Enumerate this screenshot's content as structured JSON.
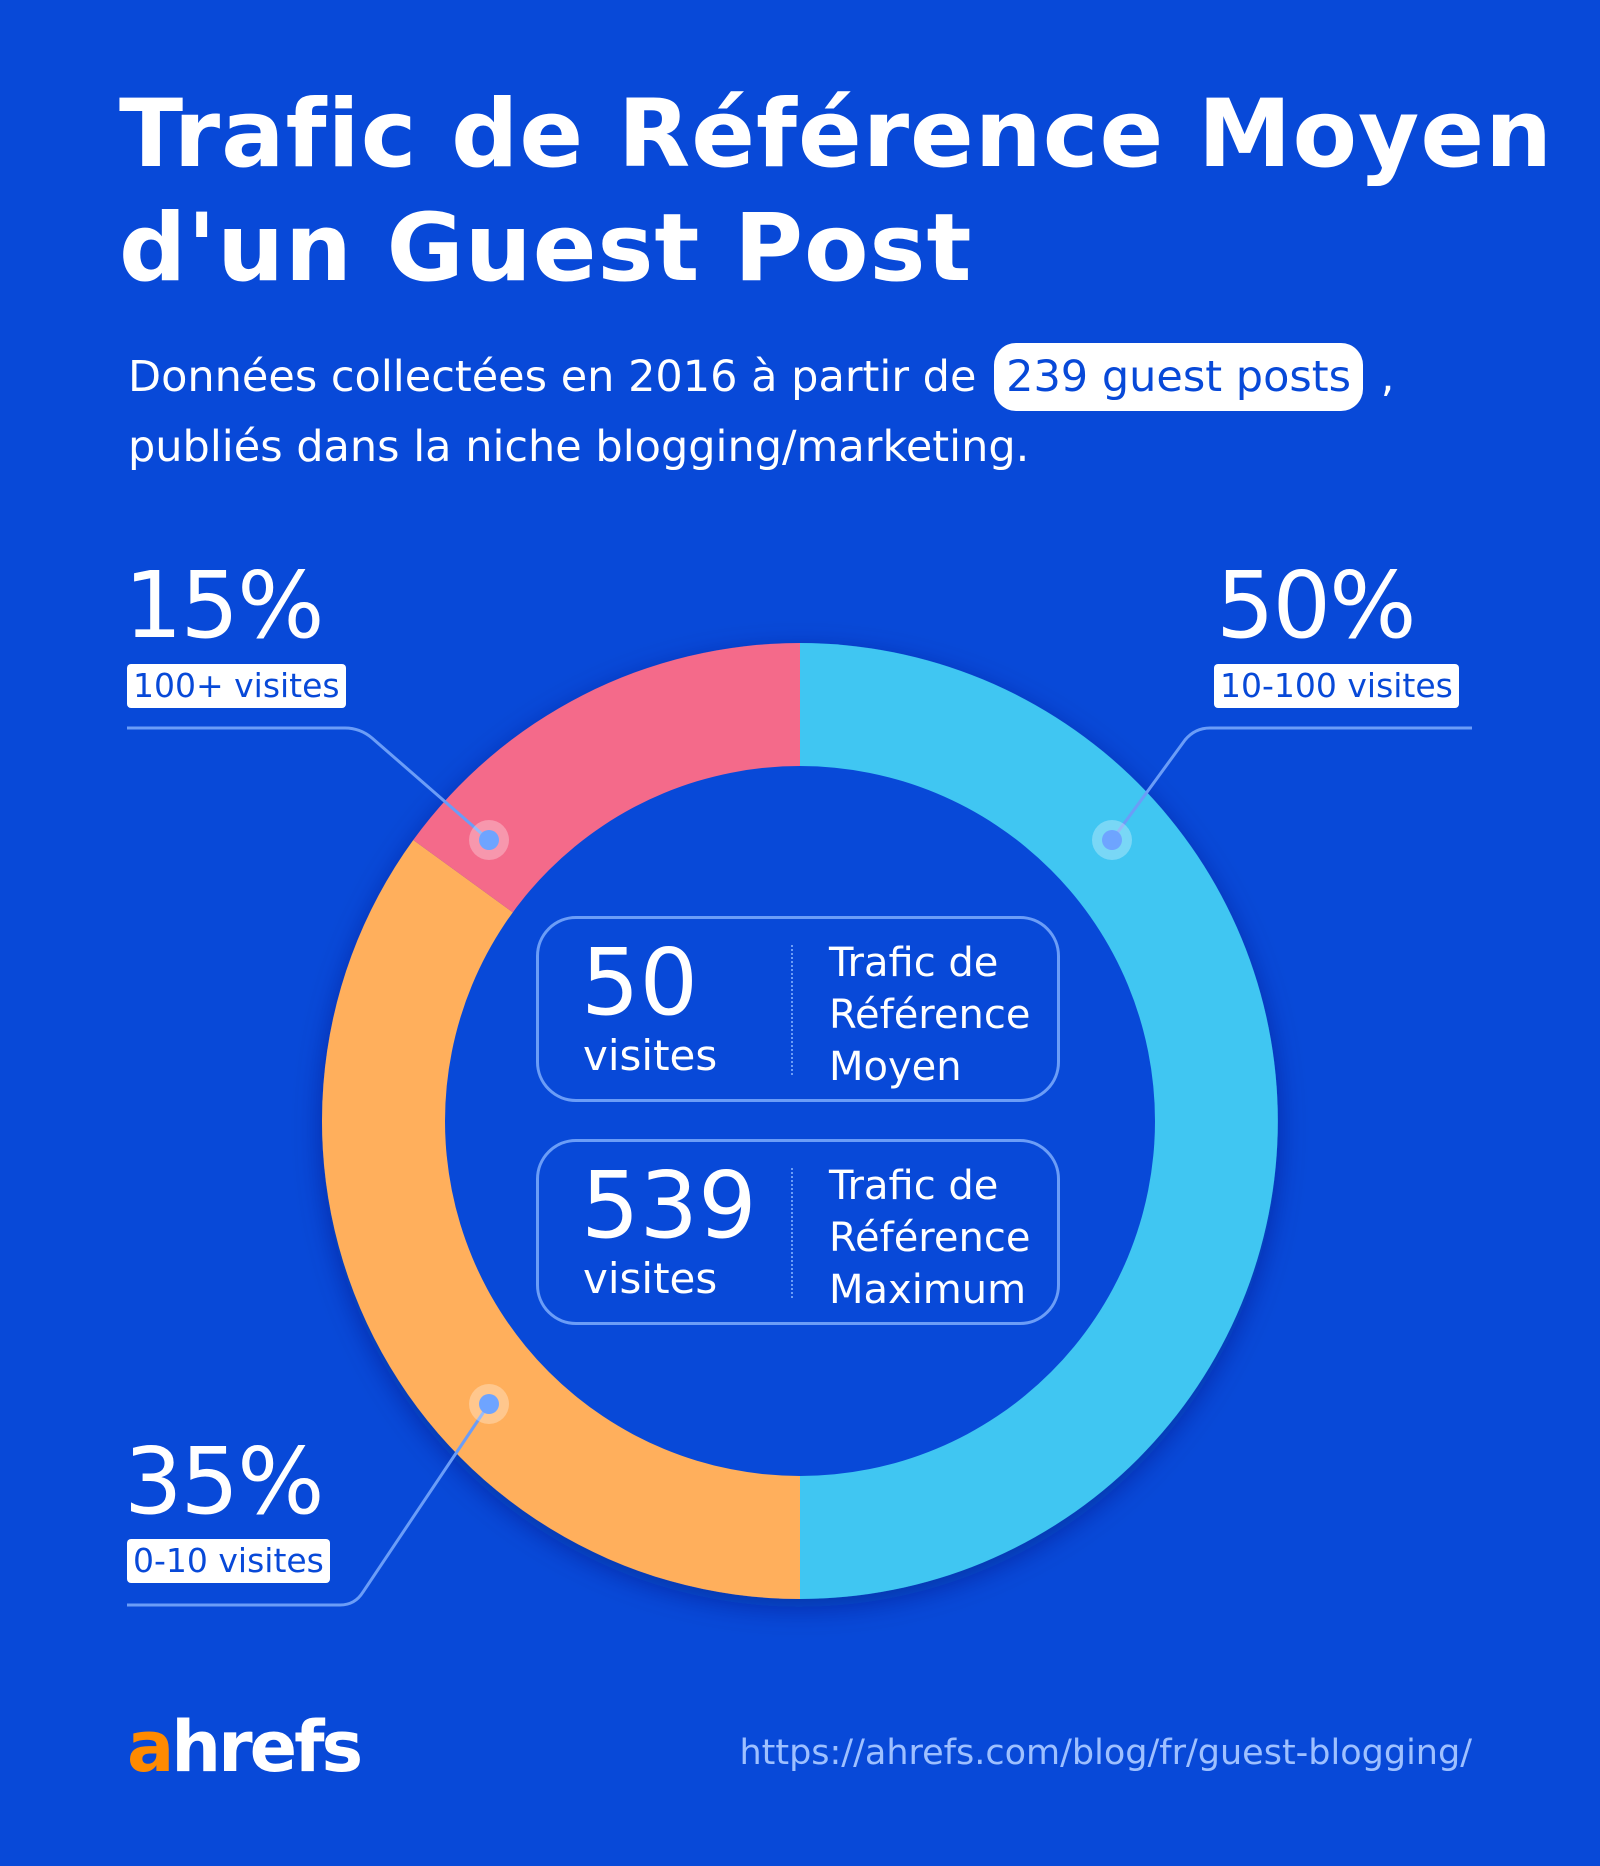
{
  "title": {
    "line1": "Trafic de Référence Moyen",
    "line2": "d'un Guest Post"
  },
  "subtitle": {
    "before": "Données collectées en 2016 à partir de",
    "highlight": "239 guest posts",
    "after": ",",
    "line2": "publiés dans la niche blogging/marketing."
  },
  "chart_data": {
    "type": "pie",
    "variant": "donut",
    "slices": [
      {
        "label": "10-100 visites",
        "value": 50,
        "display": "50%",
        "color": "#3fc6f2"
      },
      {
        "label": "0-10 visites",
        "value": 35,
        "display": "35%",
        "color": "#ffaf5c"
      },
      {
        "label": "100+ visites",
        "value": 15,
        "display": "15%",
        "color": "#f46a8a"
      }
    ]
  },
  "stats": [
    {
      "number": "50",
      "unit": "visites",
      "label": "Trafic de Référence Moyen"
    },
    {
      "number": "539",
      "unit": "visites",
      "label": "Trafic de Référence Maximum"
    }
  ],
  "footer": {
    "logo_a": "a",
    "logo_rest": "hrefs",
    "url": "https://ahrefs.com/blog/fr/guest-blogging/"
  },
  "colors": {
    "background": "#0849d8",
    "leader_line": "#6b9df7",
    "logo_accent": "#ff8a00"
  }
}
